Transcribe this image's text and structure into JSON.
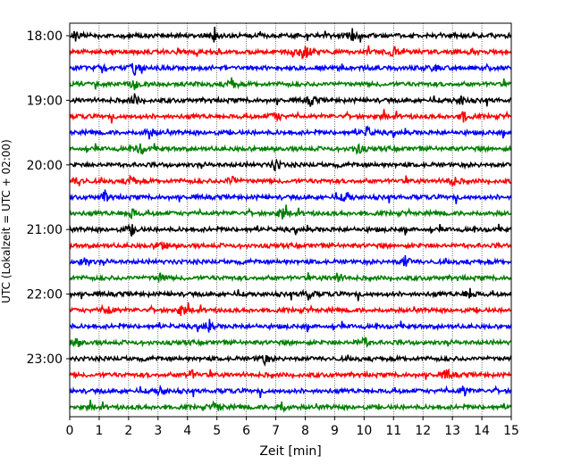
{
  "chart_data": {
    "type": "line",
    "title": "",
    "xlabel": "Zeit  [min]",
    "ylabel": "UTC (Lokalzeit = UTC + 02:00)",
    "x_ticks": [
      "0",
      "1",
      "2",
      "3",
      "4",
      "5",
      "6",
      "7",
      "8",
      "9",
      "10",
      "11",
      "12",
      "13",
      "14",
      "15"
    ],
    "xlim": [
      0,
      15
    ],
    "y_ticks": [
      "18:00",
      "19:00",
      "20:00",
      "21:00",
      "22:00",
      "23:00"
    ],
    "grid": "vertical dotted lines at each minute",
    "trace_colors": [
      "#000000",
      "#ff0000",
      "#0000ff",
      "#008000"
    ],
    "traces_per_hour": 4,
    "minutes_per_trace": 15,
    "series_count": 24,
    "row_start_times": [
      "18:00",
      "18:15",
      "18:30",
      "18:45",
      "19:00",
      "19:15",
      "19:30",
      "19:45",
      "20:00",
      "20:15",
      "20:30",
      "20:45",
      "21:00",
      "21:15",
      "21:30",
      "21:45",
      "22:00",
      "22:15",
      "22:30",
      "22:45",
      "23:00",
      "23:15",
      "23:30",
      "23:45"
    ],
    "notable_bursts_minutes": [
      [
        0.2,
        4.9,
        9.6
      ],
      [
        7.9,
        8.1,
        11.0
      ],
      [
        1.1,
        2.2,
        12.3
      ],
      [
        2.2,
        5.5
      ],
      [
        2.2,
        8.2,
        13.3
      ],
      [
        7.0,
        13.4
      ],
      [
        2.7,
        10.1
      ],
      [
        2.4,
        9.8
      ],
      [
        7.0
      ],
      [
        0.3,
        2.1,
        5.5,
        13.0
      ],
      [
        1.2,
        9.4
      ],
      [
        2.1,
        7.2
      ],
      [
        2.1
      ],
      [
        3.1
      ],
      [
        0.5,
        11.4
      ],
      [
        3.1,
        9.1
      ],
      [
        13.6,
        8.1
      ],
      [
        3.8,
        1.3
      ],
      [
        4.7
      ],
      [
        0.2,
        10.0
      ],
      [
        6.6
      ],
      [
        4.1,
        12.8
      ],
      [
        3.1,
        13.4
      ],
      [
        5.0,
        7.2
      ]
    ]
  }
}
